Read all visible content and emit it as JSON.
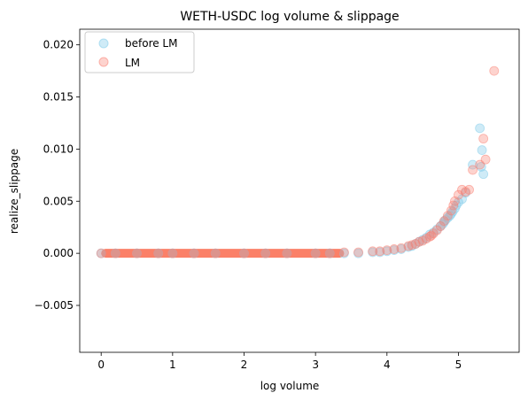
{
  "chart_data": {
    "type": "scatter",
    "title": "WETH-USDC log volume & slippage",
    "xlabel": "log volume",
    "ylabel": "realize_slippage",
    "xlim": [
      -0.3,
      5.85
    ],
    "ylim": [
      -0.0095,
      0.0215
    ],
    "xticks": [
      {
        "value": 0,
        "label": "0"
      },
      {
        "value": 1,
        "label": "1"
      },
      {
        "value": 2,
        "label": "2"
      },
      {
        "value": 3,
        "label": "3"
      },
      {
        "value": 4,
        "label": "4"
      },
      {
        "value": 5,
        "label": "5"
      }
    ],
    "yticks": [
      {
        "value": -0.005,
        "label": "−0.005"
      },
      {
        "value": 0.0,
        "label": "0.000"
      },
      {
        "value": 0.005,
        "label": "0.005"
      },
      {
        "value": 0.01,
        "label": "0.010"
      },
      {
        "value": 0.015,
        "label": "0.015"
      },
      {
        "value": 0.02,
        "label": "0.020"
      }
    ],
    "grid": false,
    "legend_position": "top-left",
    "series": [
      {
        "name": "before LM",
        "color": "#87ceeb",
        "alpha": 0.4,
        "x": [
          0.0,
          0.2,
          0.5,
          0.8,
          1.0,
          1.3,
          1.6,
          2.0,
          2.3,
          2.6,
          3.0,
          3.2,
          3.4,
          3.6,
          3.8,
          3.9,
          4.0,
          4.1,
          4.2,
          4.3,
          4.35,
          4.4,
          4.45,
          4.5,
          4.55,
          4.6,
          4.65,
          4.7,
          4.75,
          4.78,
          4.8,
          4.82,
          4.85,
          4.88,
          4.9,
          4.92,
          4.95,
          4.97,
          5.0,
          5.05,
          5.1,
          5.2,
          5.3,
          5.32,
          5.33,
          5.35
        ],
        "y": [
          0.0,
          0.0,
          0.0,
          0.0,
          0.0,
          0.0,
          0.0,
          0.0,
          0.0,
          0.0,
          0.0,
          0.0,
          0.0,
          0.0,
          0.0001,
          0.0001,
          0.0002,
          0.0003,
          0.0004,
          0.0006,
          0.0007,
          0.0009,
          0.0011,
          0.0013,
          0.0015,
          0.0018,
          0.002,
          0.0023,
          0.0026,
          0.0028,
          0.003,
          0.0032,
          0.0034,
          0.0036,
          0.0038,
          0.004,
          0.0043,
          0.0046,
          0.0049,
          0.0052,
          0.0058,
          0.0085,
          0.012,
          0.0083,
          0.0099,
          0.0076
        ]
      },
      {
        "name": "LM",
        "color": "#fa8072",
        "alpha": 0.35,
        "x": [
          0.0,
          0.2,
          0.5,
          0.8,
          1.0,
          1.3,
          1.6,
          2.0,
          2.3,
          2.6,
          3.0,
          3.2,
          3.4,
          3.6,
          3.8,
          3.9,
          4.0,
          4.1,
          4.2,
          4.3,
          4.35,
          4.4,
          4.45,
          4.5,
          4.55,
          4.6,
          4.62,
          4.65,
          4.7,
          4.75,
          4.8,
          4.85,
          4.9,
          4.93,
          4.95,
          5.0,
          5.05,
          5.1,
          5.15,
          5.2,
          5.3,
          5.35,
          5.38,
          5.5
        ],
        "y": [
          0.0,
          0.0,
          0.0,
          0.0,
          0.0,
          0.0,
          0.0,
          0.0,
          0.0,
          0.0,
          0.0,
          0.0,
          0.0001,
          0.0001,
          0.0002,
          0.0002,
          0.0003,
          0.0004,
          0.0005,
          0.0007,
          0.0008,
          0.0009,
          0.0011,
          0.0012,
          0.0014,
          0.0016,
          0.0017,
          0.0019,
          0.0022,
          0.0026,
          0.0031,
          0.0036,
          0.0041,
          0.0046,
          0.005,
          0.0056,
          0.0061,
          0.0059,
          0.0061,
          0.008,
          0.0085,
          0.011,
          0.009,
          0.0175
        ]
      }
    ],
    "dense_band": {
      "x_start": 0.0,
      "x_end": 3.4,
      "y": 0.0,
      "color": "#fa6a4e"
    }
  }
}
